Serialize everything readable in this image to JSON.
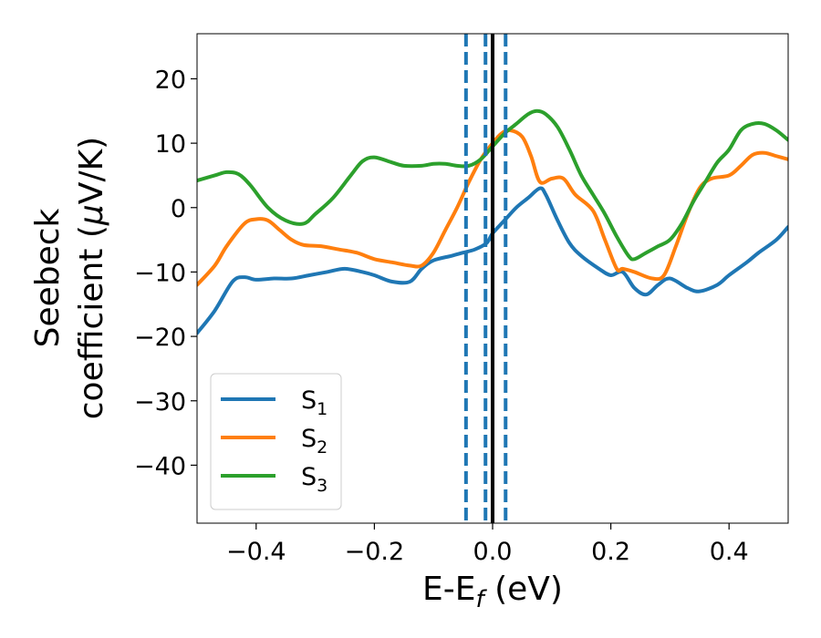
{
  "chart_data": {
    "type": "line",
    "xlabel": {
      "base": "E-E",
      "sub": "f",
      "tail": " (eV)"
    },
    "ylabel": {
      "line1": "Seebeck",
      "line2_pre": "coefficient  (",
      "mu": "μ",
      "line2_post": "V/K)"
    },
    "xlim": [
      -0.5,
      0.5
    ],
    "ylim": [
      -49,
      27
    ],
    "xticks": [
      {
        "value": -0.4,
        "label": "−0.4"
      },
      {
        "value": -0.2,
        "label": "−0.2"
      },
      {
        "value": 0.0,
        "label": "0.0"
      },
      {
        "value": 0.2,
        "label": "0.2"
      },
      {
        "value": 0.4,
        "label": "0.4"
      }
    ],
    "yticks": [
      {
        "value": 20,
        "label": "20"
      },
      {
        "value": 10,
        "label": "10"
      },
      {
        "value": 0,
        "label": "0"
      },
      {
        "value": -10,
        "label": "−10"
      },
      {
        "value": -20,
        "label": "−20"
      },
      {
        "value": -30,
        "label": "−30"
      },
      {
        "value": -40,
        "label": "−40"
      }
    ],
    "legend_position": "lower-left",
    "colors": {
      "s1": "#1f77b4",
      "s2": "#ff7f0e",
      "s3": "#2ca02c",
      "fermi": "#000000"
    },
    "vlines": [
      {
        "x": -0.045,
        "style": "dashed",
        "color": "#1f77b4"
      },
      {
        "x": -0.012,
        "style": "dashed",
        "color": "#1f77b4"
      },
      {
        "x": 0.0,
        "style": "solid",
        "color": "#000000"
      },
      {
        "x": 0.022,
        "style": "dashed",
        "color": "#1f77b4"
      }
    ],
    "series": [
      {
        "key": "s1",
        "name": "S",
        "sub": "1",
        "color": "#1f77b4",
        "x": [
          -0.5,
          -0.47,
          -0.44,
          -0.42,
          -0.4,
          -0.37,
          -0.34,
          -0.31,
          -0.28,
          -0.25,
          -0.22,
          -0.2,
          -0.17,
          -0.14,
          -0.12,
          -0.1,
          -0.07,
          -0.05,
          -0.03,
          -0.01,
          0.0,
          0.02,
          0.04,
          0.06,
          0.08,
          0.09,
          0.11,
          0.13,
          0.15,
          0.18,
          0.2,
          0.22,
          0.24,
          0.26,
          0.28,
          0.3,
          0.33,
          0.35,
          0.38,
          0.4,
          0.43,
          0.45,
          0.48,
          0.5
        ],
        "y": [
          -19.5,
          -16,
          -11.5,
          -10.8,
          -11.2,
          -11,
          -11,
          -10.5,
          -10,
          -9.5,
          -10,
          -10.5,
          -11.5,
          -11.5,
          -9.5,
          -8.2,
          -7.5,
          -7,
          -6.5,
          -5.5,
          -4,
          -2,
          0,
          1.5,
          3,
          2,
          -2,
          -5.5,
          -7.5,
          -9.5,
          -10.5,
          -10,
          -12.5,
          -13.5,
          -12,
          -11,
          -12.5,
          -13,
          -12,
          -10.5,
          -8.5,
          -7,
          -5,
          -3
        ]
      },
      {
        "key": "s2",
        "name": "S",
        "sub": "2",
        "color": "#ff7f0e",
        "x": [
          -0.5,
          -0.47,
          -0.45,
          -0.42,
          -0.4,
          -0.38,
          -0.36,
          -0.34,
          -0.32,
          -0.29,
          -0.26,
          -0.23,
          -0.2,
          -0.17,
          -0.14,
          -0.12,
          -0.1,
          -0.08,
          -0.06,
          -0.04,
          -0.02,
          0.0,
          0.015,
          0.03,
          0.05,
          0.065,
          0.08,
          0.1,
          0.12,
          0.14,
          0.17,
          0.19,
          0.21,
          0.22,
          0.24,
          0.27,
          0.29,
          0.31,
          0.33,
          0.35,
          0.37,
          0.4,
          0.42,
          0.44,
          0.46,
          0.48,
          0.5
        ],
        "y": [
          -12,
          -9,
          -6,
          -2.5,
          -1.8,
          -2,
          -3.5,
          -5,
          -5.8,
          -6,
          -6.5,
          -7,
          -8,
          -8.5,
          -9,
          -9,
          -7,
          -3.5,
          0,
          4,
          7.5,
          10,
          11.5,
          12,
          11,
          8,
          4,
          4.5,
          4.5,
          2,
          -0.5,
          -5,
          -9.5,
          -9.5,
          -10,
          -11,
          -10.5,
          -6,
          -1,
          3,
          4.5,
          5,
          6.5,
          8.2,
          8.5,
          8,
          7.5
        ]
      },
      {
        "key": "s3",
        "name": "S",
        "sub": "3",
        "color": "#2ca02c",
        "x": [
          -0.5,
          -0.47,
          -0.45,
          -0.43,
          -0.41,
          -0.38,
          -0.35,
          -0.32,
          -0.3,
          -0.27,
          -0.24,
          -0.22,
          -0.2,
          -0.17,
          -0.15,
          -0.12,
          -0.1,
          -0.08,
          -0.06,
          -0.04,
          -0.02,
          0.0,
          0.02,
          0.04,
          0.06,
          0.075,
          0.09,
          0.11,
          0.13,
          0.15,
          0.17,
          0.19,
          0.21,
          0.23,
          0.24,
          0.26,
          0.28,
          0.3,
          0.32,
          0.34,
          0.36,
          0.38,
          0.4,
          0.42,
          0.44,
          0.46,
          0.48,
          0.5
        ],
        "y": [
          4.2,
          5,
          5.5,
          5.2,
          3.5,
          0,
          -2,
          -2.5,
          -1,
          1.5,
          5,
          7.2,
          7.8,
          7,
          6.5,
          6.5,
          6.8,
          6.8,
          6.5,
          6.5,
          7.5,
          9.5,
          11.5,
          13,
          14.5,
          15,
          14.5,
          12.5,
          9,
          5,
          2,
          -1,
          -4.5,
          -7.5,
          -8,
          -7,
          -6,
          -5,
          -2.5,
          1,
          4,
          7,
          9,
          12,
          13,
          13,
          12,
          10.5
        ]
      }
    ]
  }
}
